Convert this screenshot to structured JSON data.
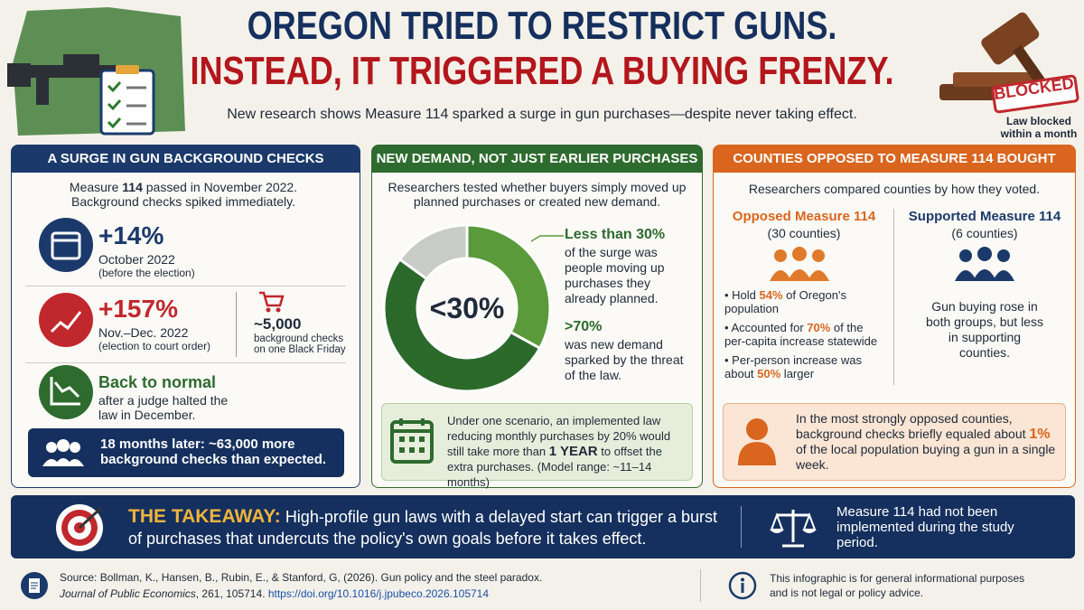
{
  "header": {
    "title_line1": "OREGON TRIED TO RESTRICT GUNS.",
    "title_line2": "INSTEAD, IT TRIGGERED A BUYING FRENZY.",
    "subtitle": "New research shows Measure 114 sparked a surge in gun purchases—despite never taking effect.",
    "badge": "BLOCKED",
    "badge_caption": "Law blocked within a month"
  },
  "panels": [
    {
      "title": "A SURGE IN GUN BACKGROUND CHECKS",
      "intro": [
        "Measure ",
        "114",
        " passed in November 2022. Background checks spiked immediately."
      ],
      "stats": [
        {
          "value": "+14%",
          "label": "October 2022",
          "note": "(before the election)"
        },
        {
          "value": "+157%",
          "label": "Nov.–Dec. 2022",
          "note": "(election to court order)"
        },
        {
          "value": "Back to normal",
          "note": "after a judge halted the law in December."
        }
      ],
      "side_stat": {
        "value": "~5,000",
        "note": "background checks on one Black Friday"
      },
      "callout": "18 months later: ~63,000 more background checks than expected."
    },
    {
      "title": "NEW DEMAND, NOT JUST EARLIER PURCHASES",
      "intro": "Researchers tested whether buyers simply moved up planned purchases or created new demand.",
      "donut": {
        "center": "<30%",
        "values": [
          33,
          52,
          15
        ],
        "colors": [
          "#5a9a3a",
          "#2c6a2c",
          "#c8cbc6"
        ]
      },
      "legend": [
        {
          "head": "Less than 30%",
          "text": "of the surge was people moving up purchases they already planned."
        },
        {
          "head": ">70%",
          "text": "was new demand sparked by the threat of the law."
        }
      ],
      "note": [
        "Under one scenario, an implemented law reducing monthly purchases by 20% would still take more than ",
        "1 YEAR",
        " to offset the extra purchases. (Model range: ~11–14 months)"
      ]
    },
    {
      "title": "COUNTIES OPPOSED TO MEASURE 114 BOUGHT MORE",
      "intro": "Researchers compared counties by how they voted.",
      "opposed": {
        "title": "Opposed Measure 114",
        "count": "(30 counties)",
        "bullets": [
          [
            "Hold ",
            "54%",
            " of Oregon's population"
          ],
          [
            "Accounted for ",
            "70%",
            " of the per-capita increase statewide"
          ],
          [
            "Per-person increase was about ",
            "50%",
            " larger"
          ]
        ]
      },
      "supported": {
        "title": "Supported Measure 114",
        "count": "(6 counties)",
        "text": "Gun buying rose in both groups, but less in supporting counties."
      },
      "note": [
        "In the most strongly opposed counties, background checks briefly equaled about ",
        "1%",
        " of the local population buying a gun in a single week."
      ]
    }
  ],
  "takeaway": {
    "label": "THE TAKEAWAY:",
    "text": "High-profile gun laws with a delayed start can trigger a burst of purchases that undercuts the policy's own goals before it takes effect.",
    "side": "Measure 114 had not been implemented during the study period."
  },
  "footer": {
    "source": "Source: Bollman, K., Hansen, B., Rubin, E., & Stanford, G, (2026). Gun policy and the steel paradox.",
    "journal": "Journal of Public Economics",
    "journal_rest": ", 261, 105714. ",
    "link": "https://doi.org/10.1016/j.jpubeco.2026.105714",
    "disclaimer": "This infographic is for general informational purposes and is not legal or policy advice."
  }
}
